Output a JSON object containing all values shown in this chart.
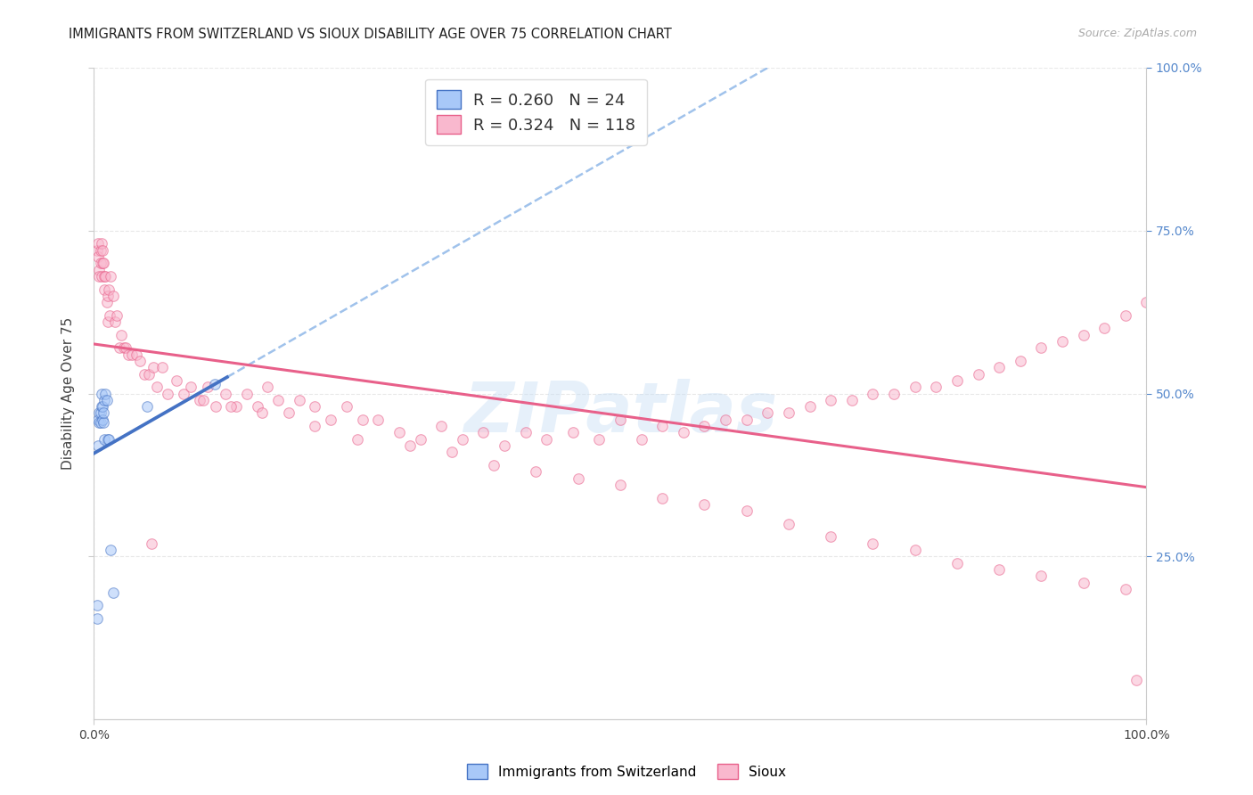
{
  "title": "IMMIGRANTS FROM SWITZERLAND VS SIOUX DISABILITY AGE OVER 75 CORRELATION CHART",
  "source": "Source: ZipAtlas.com",
  "ylabel": "Disability Age Over 75",
  "xlim": [
    0,
    1.0
  ],
  "ylim": [
    0,
    1.0
  ],
  "watermark": "ZIPatlas",
  "background_color": "#ffffff",
  "grid_color": "#e8e8e8",
  "swiss_x": [
    0.003,
    0.003,
    0.004,
    0.004,
    0.005,
    0.005,
    0.006,
    0.006,
    0.007,
    0.007,
    0.008,
    0.008,
    0.009,
    0.009,
    0.01,
    0.01,
    0.011,
    0.012,
    0.013,
    0.014,
    0.016,
    0.018,
    0.05,
    0.115
  ],
  "swiss_y": [
    0.175,
    0.155,
    0.42,
    0.46,
    0.47,
    0.455,
    0.455,
    0.47,
    0.48,
    0.5,
    0.48,
    0.46,
    0.455,
    0.47,
    0.43,
    0.49,
    0.5,
    0.49,
    0.43,
    0.43,
    0.26,
    0.195,
    0.48,
    0.515
  ],
  "sioux_x": [
    0.003,
    0.004,
    0.004,
    0.005,
    0.005,
    0.006,
    0.006,
    0.007,
    0.007,
    0.008,
    0.008,
    0.009,
    0.01,
    0.01,
    0.011,
    0.012,
    0.013,
    0.013,
    0.014,
    0.015,
    0.016,
    0.018,
    0.02,
    0.022,
    0.024,
    0.026,
    0.028,
    0.03,
    0.033,
    0.036,
    0.04,
    0.044,
    0.048,
    0.052,
    0.056,
    0.06,
    0.065,
    0.07,
    0.078,
    0.085,
    0.092,
    0.1,
    0.108,
    0.116,
    0.125,
    0.135,
    0.145,
    0.155,
    0.165,
    0.175,
    0.185,
    0.195,
    0.21,
    0.225,
    0.24,
    0.255,
    0.27,
    0.29,
    0.31,
    0.33,
    0.35,
    0.37,
    0.39,
    0.41,
    0.43,
    0.455,
    0.48,
    0.5,
    0.52,
    0.54,
    0.56,
    0.58,
    0.6,
    0.62,
    0.64,
    0.66,
    0.68,
    0.7,
    0.72,
    0.74,
    0.76,
    0.78,
    0.8,
    0.82,
    0.84,
    0.86,
    0.88,
    0.9,
    0.92,
    0.94,
    0.96,
    0.98,
    1.0,
    0.104,
    0.055,
    0.13,
    0.16,
    0.21,
    0.25,
    0.3,
    0.34,
    0.38,
    0.42,
    0.46,
    0.5,
    0.54,
    0.58,
    0.62,
    0.66,
    0.7,
    0.74,
    0.78,
    0.82,
    0.86,
    0.9,
    0.94,
    0.98,
    0.99
  ],
  "sioux_y": [
    0.72,
    0.73,
    0.71,
    0.69,
    0.68,
    0.72,
    0.7,
    0.73,
    0.68,
    0.72,
    0.7,
    0.7,
    0.68,
    0.66,
    0.68,
    0.64,
    0.65,
    0.61,
    0.66,
    0.62,
    0.68,
    0.65,
    0.61,
    0.62,
    0.57,
    0.59,
    0.57,
    0.57,
    0.56,
    0.56,
    0.56,
    0.55,
    0.53,
    0.53,
    0.54,
    0.51,
    0.54,
    0.5,
    0.52,
    0.5,
    0.51,
    0.49,
    0.51,
    0.48,
    0.5,
    0.48,
    0.5,
    0.48,
    0.51,
    0.49,
    0.47,
    0.49,
    0.48,
    0.46,
    0.48,
    0.46,
    0.46,
    0.44,
    0.43,
    0.45,
    0.43,
    0.44,
    0.42,
    0.44,
    0.43,
    0.44,
    0.43,
    0.46,
    0.43,
    0.45,
    0.44,
    0.45,
    0.46,
    0.46,
    0.47,
    0.47,
    0.48,
    0.49,
    0.49,
    0.5,
    0.5,
    0.51,
    0.51,
    0.52,
    0.53,
    0.54,
    0.55,
    0.57,
    0.58,
    0.59,
    0.6,
    0.62,
    0.64,
    0.49,
    0.27,
    0.48,
    0.47,
    0.45,
    0.43,
    0.42,
    0.41,
    0.39,
    0.38,
    0.37,
    0.36,
    0.34,
    0.33,
    0.32,
    0.3,
    0.28,
    0.27,
    0.26,
    0.24,
    0.23,
    0.22,
    0.21,
    0.2,
    0.06
  ],
  "swiss_color": "#a8c8f8",
  "sioux_color": "#f9b8ce",
  "swiss_line_color": "#4472c4",
  "sioux_line_color": "#e8608a",
  "swiss_dash_color": "#90b8e8",
  "marker_size": 70,
  "marker_alpha": 0.55,
  "line_width": 2.2
}
